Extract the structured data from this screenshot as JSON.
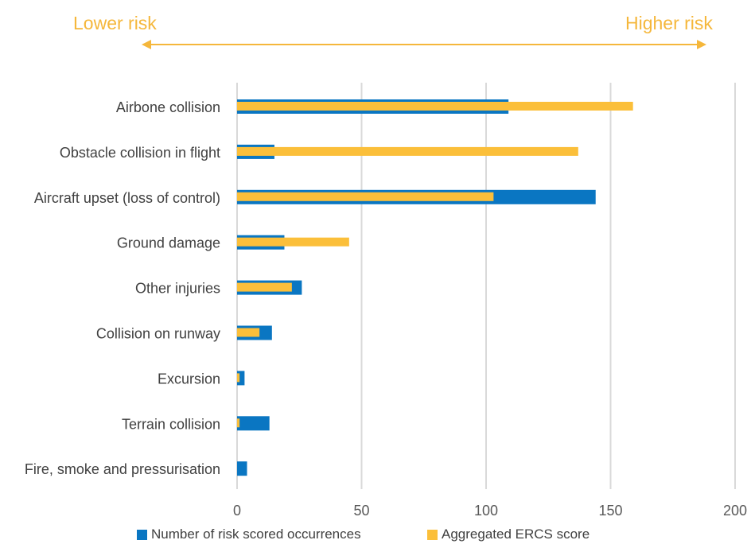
{
  "header": {
    "lower_risk": "Lower risk",
    "higher_risk": "Higher risk",
    "arrow_color": "#F5B73B"
  },
  "chart_data": {
    "type": "bar",
    "orientation": "horizontal",
    "categories": [
      "Airbone collision",
      "Obstacle collision in flight",
      "Aircraft upset (loss of control)",
      "Ground damage",
      "Other injuries",
      "Collision on runway",
      "Excursion",
      "Terrain collision",
      "Fire, smoke and pressurisation"
    ],
    "series": [
      {
        "name": "Number of risk scored occurrences",
        "color": "#0A76C2",
        "values": [
          109,
          15,
          144,
          19,
          26,
          14,
          3,
          13,
          4
        ]
      },
      {
        "name": "Aggregated ERCS score",
        "color": "#FBBF3A",
        "values": [
          159,
          137,
          103,
          45,
          22,
          9,
          1,
          1,
          0
        ]
      }
    ],
    "xlim": [
      0,
      200
    ],
    "xticks": [
      "0",
      "50",
      "100",
      "150",
      "200"
    ],
    "grid": true,
    "legend": "bottom"
  }
}
